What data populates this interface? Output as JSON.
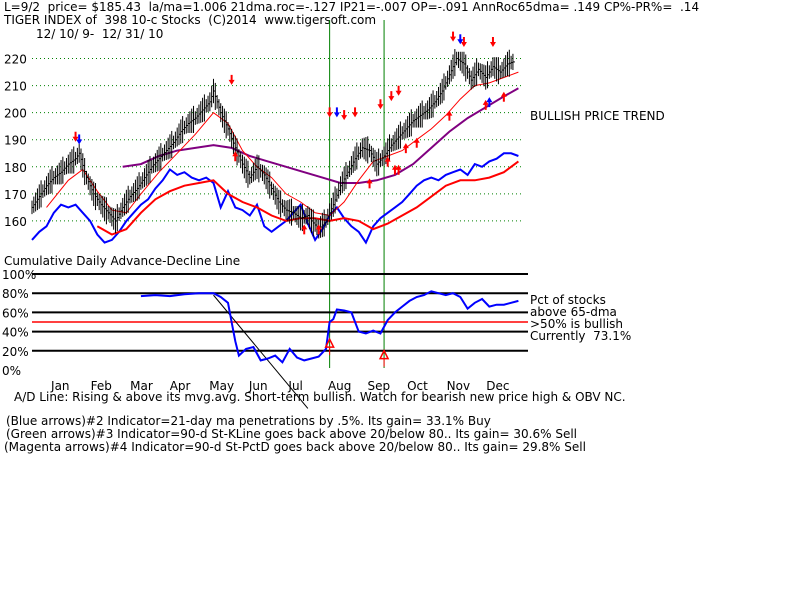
{
  "header": {
    "line1": "L=9/2  price= $185.43  la/ma=1.006 21dma.roc=-.127 IP21=-.007 OP=-.091 AnnRoc65dma= .149 CP%-PR%=  .14",
    "line2": "TIGER INDEX of  398 10-c Stocks  (C)2014  www.tigersoft.com",
    "line3": "12/ 10/ 9-  12/ 31/ 10"
  },
  "upper_note": "BULLISH PRICE TREND",
  "ad_title": "Cumulative Daily Advance-Decline Line",
  "pct_notes": {
    "l1": "Pct of stocks",
    "l2": "above 65-dma",
    "l3": ">50% is bullish",
    "l4": "Currently  73.1%"
  },
  "footer": {
    "ad_line": "A/D Line: Rising & above its mvg.avg. Short-term bullish. Watch for bearish new price high & OBV NC.",
    "ind2": "(Blue arrows)#2 Indicator=21-day ma penetrations by .5%. Its gain= 33.1% Buy",
    "ind3": "(Green arrows)#3 Indicator=90-d St-KLine goes back above 20/below 80.. Its gain= 30.6% Sell",
    "ind4": "(Magenta arrows)#4 Indicator=90-d St-PctD goes back above 20/below 80.. Its gain= 29.8% Sell"
  },
  "colors": {
    "price": "#000000",
    "ma_short": "#ff0000",
    "ma_long": "#800080",
    "ad_line": "#0000ff",
    "ad_ma": "#ff0000",
    "pct_line": "#0000ff",
    "pct50_line": "#ff0000",
    "green_line": "#008000",
    "up_arrow": "#ff0000",
    "down_arrow": "#ff0000",
    "blue_arrow": "#0000ff"
  },
  "chart_data": [
    {
      "type": "line",
      "title": "TIGER INDEX of  398 10-c Stocks",
      "ylim": [
        150,
        225
      ],
      "yticks": [
        160,
        170,
        180,
        190,
        200,
        210,
        220
      ],
      "months": [
        "Jan",
        "Feb",
        "Mar",
        "Apr",
        "May",
        "Jun",
        "Jul",
        "Aug",
        "Sep",
        "Oct",
        "Nov",
        "Dec"
      ],
      "price_series": [
        [
          0,
          165
        ],
        [
          2,
          169
        ],
        [
          4,
          173
        ],
        [
          6,
          176
        ],
        [
          8,
          178
        ],
        [
          10,
          181
        ],
        [
          12,
          183
        ],
        [
          13,
          185
        ],
        [
          15,
          176
        ],
        [
          17,
          170
        ],
        [
          19,
          166
        ],
        [
          21,
          163
        ],
        [
          23,
          160
        ],
        [
          25,
          165
        ],
        [
          27,
          169
        ],
        [
          29,
          172
        ],
        [
          31,
          176
        ],
        [
          33,
          180
        ],
        [
          35,
          183
        ],
        [
          37,
          186
        ],
        [
          39,
          189
        ],
        [
          41,
          193
        ],
        [
          43,
          196
        ],
        [
          45,
          198
        ],
        [
          47,
          201
        ],
        [
          49,
          204
        ],
        [
          50,
          208
        ],
        [
          52,
          200
        ],
        [
          54,
          194
        ],
        [
          56,
          187
        ],
        [
          58,
          181
        ],
        [
          60,
          176
        ],
        [
          62,
          180
        ],
        [
          64,
          177
        ],
        [
          66,
          172
        ],
        [
          68,
          167
        ],
        [
          70,
          164
        ],
        [
          72,
          163
        ],
        [
          74,
          161
        ],
        [
          76,
          162
        ],
        [
          77,
          160
        ],
        [
          79,
          157
        ],
        [
          81,
          160
        ],
        [
          83,
          166
        ],
        [
          85,
          173
        ],
        [
          87,
          178
        ],
        [
          89,
          183
        ],
        [
          91,
          187
        ],
        [
          93,
          186
        ],
        [
          95,
          181
        ],
        [
          97,
          184
        ],
        [
          99,
          188
        ],
        [
          101,
          191
        ],
        [
          103,
          194
        ],
        [
          105,
          197
        ],
        [
          107,
          199
        ],
        [
          109,
          201
        ],
        [
          111,
          204
        ],
        [
          113,
          208
        ],
        [
          115,
          214
        ],
        [
          117,
          220
        ],
        [
          119,
          218
        ],
        [
          121,
          212
        ],
        [
          123,
          216
        ],
        [
          125,
          213
        ],
        [
          127,
          217
        ],
        [
          129,
          215
        ],
        [
          131,
          218
        ],
        [
          133,
          219
        ]
      ],
      "ma_short": [
        [
          4,
          165
        ],
        [
          10,
          175
        ],
        [
          14,
          179
        ],
        [
          18,
          171
        ],
        [
          22,
          164
        ],
        [
          26,
          163
        ],
        [
          30,
          170
        ],
        [
          35,
          178
        ],
        [
          40,
          185
        ],
        [
          45,
          192
        ],
        [
          50,
          200
        ],
        [
          54,
          196
        ],
        [
          58,
          186
        ],
        [
          62,
          180
        ],
        [
          66,
          176
        ],
        [
          70,
          170
        ],
        [
          74,
          167
        ],
        [
          78,
          163
        ],
        [
          82,
          162
        ],
        [
          86,
          167
        ],
        [
          90,
          175
        ],
        [
          94,
          182
        ],
        [
          98,
          184
        ],
        [
          102,
          186
        ],
        [
          106,
          190
        ],
        [
          110,
          194
        ],
        [
          114,
          199
        ],
        [
          118,
          205
        ],
        [
          122,
          210
        ],
        [
          126,
          211
        ],
        [
          130,
          213
        ],
        [
          134,
          215
        ]
      ],
      "ma_long": [
        [
          25,
          180
        ],
        [
          30,
          181
        ],
        [
          35,
          184
        ],
        [
          40,
          186
        ],
        [
          45,
          187
        ],
        [
          50,
          188
        ],
        [
          55,
          187
        ],
        [
          60,
          184
        ],
        [
          65,
          182
        ],
        [
          70,
          180
        ],
        [
          75,
          178
        ],
        [
          80,
          176
        ],
        [
          85,
          174
        ],
        [
          90,
          174
        ],
        [
          95,
          175
        ],
        [
          100,
          177
        ],
        [
          105,
          181
        ],
        [
          110,
          187
        ],
        [
          115,
          193
        ],
        [
          120,
          198
        ],
        [
          125,
          202
        ],
        [
          130,
          206
        ],
        [
          134,
          209
        ]
      ],
      "ad_line": [
        [
          0,
          153
        ],
        [
          2,
          156
        ],
        [
          4,
          158
        ],
        [
          6,
          163
        ],
        [
          8,
          166
        ],
        [
          10,
          165
        ],
        [
          12,
          166
        ],
        [
          14,
          163
        ],
        [
          16,
          160
        ],
        [
          18,
          155
        ],
        [
          20,
          152
        ],
        [
          22,
          153
        ],
        [
          24,
          156
        ],
        [
          26,
          160
        ],
        [
          28,
          163
        ],
        [
          30,
          166
        ],
        [
          32,
          168
        ],
        [
          34,
          172
        ],
        [
          36,
          175
        ],
        [
          38,
          179
        ],
        [
          40,
          177
        ],
        [
          42,
          178
        ],
        [
          44,
          176
        ],
        [
          46,
          175
        ],
        [
          48,
          176
        ],
        [
          50,
          174
        ],
        [
          52,
          165
        ],
        [
          54,
          171
        ],
        [
          56,
          165
        ],
        [
          58,
          164
        ],
        [
          60,
          162
        ],
        [
          62,
          166
        ],
        [
          64,
          158
        ],
        [
          66,
          156
        ],
        [
          68,
          158
        ],
        [
          70,
          160
        ],
        [
          72,
          163
        ],
        [
          74,
          166
        ],
        [
          76,
          159
        ],
        [
          78,
          153
        ],
        [
          80,
          157
        ],
        [
          82,
          162
        ],
        [
          84,
          165
        ],
        [
          86,
          161
        ],
        [
          88,
          158
        ],
        [
          90,
          156
        ],
        [
          92,
          152
        ],
        [
          94,
          158
        ],
        [
          96,
          161
        ],
        [
          98,
          163
        ],
        [
          100,
          165
        ],
        [
          102,
          167
        ],
        [
          104,
          170
        ],
        [
          106,
          173
        ],
        [
          108,
          175
        ],
        [
          110,
          176
        ],
        [
          112,
          175
        ],
        [
          114,
          177
        ],
        [
          116,
          178
        ],
        [
          118,
          179
        ],
        [
          120,
          177
        ],
        [
          122,
          181
        ],
        [
          124,
          180
        ],
        [
          126,
          182
        ],
        [
          128,
          183
        ],
        [
          130,
          185
        ],
        [
          132,
          185
        ],
        [
          134,
          184
        ]
      ],
      "ad_ma": [
        [
          18,
          158
        ],
        [
          22,
          155
        ],
        [
          26,
          157
        ],
        [
          30,
          163
        ],
        [
          34,
          168
        ],
        [
          38,
          171
        ],
        [
          42,
          173
        ],
        [
          46,
          174
        ],
        [
          50,
          175
        ],
        [
          54,
          170
        ],
        [
          58,
          167
        ],
        [
          62,
          165
        ],
        [
          66,
          162
        ],
        [
          70,
          160
        ],
        [
          74,
          161
        ],
        [
          78,
          161
        ],
        [
          82,
          160
        ],
        [
          86,
          161
        ],
        [
          90,
          160
        ],
        [
          94,
          157
        ],
        [
          98,
          159
        ],
        [
          102,
          162
        ],
        [
          106,
          165
        ],
        [
          110,
          169
        ],
        [
          114,
          173
        ],
        [
          118,
          175
        ],
        [
          122,
          175
        ],
        [
          126,
          176
        ],
        [
          130,
          178
        ],
        [
          134,
          182
        ]
      ],
      "up_arrows": [
        [
          56,
          185
        ],
        [
          75,
          158
        ],
        [
          79,
          158
        ],
        [
          93,
          175
        ],
        [
          98,
          183
        ],
        [
          100,
          180
        ],
        [
          101,
          180
        ],
        [
          103,
          188
        ],
        [
          106,
          190
        ],
        [
          115,
          200
        ],
        [
          125,
          204
        ],
        [
          130,
          207
        ]
      ],
      "down_arrows": [
        [
          12,
          190
        ],
        [
          55,
          211
        ],
        [
          82,
          199
        ],
        [
          86,
          198
        ],
        [
          89,
          199
        ],
        [
          96,
          202
        ],
        [
          99,
          205
        ],
        [
          101,
          207
        ],
        [
          116,
          227
        ],
        [
          119,
          225
        ],
        [
          127,
          225
        ]
      ],
      "blue_down_arrows": [
        [
          13,
          189
        ],
        [
          84,
          199
        ],
        [
          118,
          226
        ]
      ],
      "blue_up_arrows": [
        [
          126,
          205
        ]
      ]
    },
    {
      "type": "line",
      "title": "Pct of stocks above 65-dma",
      "ylim": [
        0,
        100
      ],
      "yticks": [
        0,
        20,
        40,
        60,
        80,
        100
      ],
      "ytick_labels": [
        "0%",
        "20%",
        "40%",
        "60%",
        "80%",
        "100%"
      ],
      "pct_series": [
        [
          30,
          77
        ],
        [
          34,
          78
        ],
        [
          38,
          77
        ],
        [
          42,
          79
        ],
        [
          46,
          80
        ],
        [
          50,
          80
        ],
        [
          52,
          76
        ],
        [
          54,
          70
        ],
        [
          55,
          50
        ],
        [
          56,
          30
        ],
        [
          57,
          15
        ],
        [
          59,
          22
        ],
        [
          61,
          24
        ],
        [
          63,
          10
        ],
        [
          65,
          12
        ],
        [
          67,
          15
        ],
        [
          69,
          8
        ],
        [
          71,
          22
        ],
        [
          73,
          13
        ],
        [
          75,
          10
        ],
        [
          77,
          12
        ],
        [
          79,
          14
        ],
        [
          81,
          22
        ],
        [
          82,
          50
        ],
        [
          83,
          53
        ],
        [
          84,
          63
        ],
        [
          86,
          62
        ],
        [
          88,
          60
        ],
        [
          90,
          40
        ],
        [
          92,
          38
        ],
        [
          94,
          41
        ],
        [
          96,
          38
        ],
        [
          98,
          52
        ],
        [
          100,
          60
        ],
        [
          102,
          66
        ],
        [
          104,
          72
        ],
        [
          106,
          76
        ],
        [
          108,
          78
        ],
        [
          110,
          82
        ],
        [
          112,
          80
        ],
        [
          114,
          78
        ],
        [
          116,
          80
        ],
        [
          118,
          76
        ],
        [
          120,
          64
        ],
        [
          122,
          70
        ],
        [
          124,
          74
        ],
        [
          126,
          66
        ],
        [
          128,
          68
        ],
        [
          130,
          68
        ],
        [
          132,
          70
        ],
        [
          134,
          72
        ]
      ],
      "hlines": [
        100,
        80,
        60,
        50,
        40,
        20
      ],
      "green_lines_at": [
        82,
        97
      ],
      "red_up_markers": [
        [
          82,
          28
        ],
        [
          97,
          16
        ]
      ]
    }
  ]
}
